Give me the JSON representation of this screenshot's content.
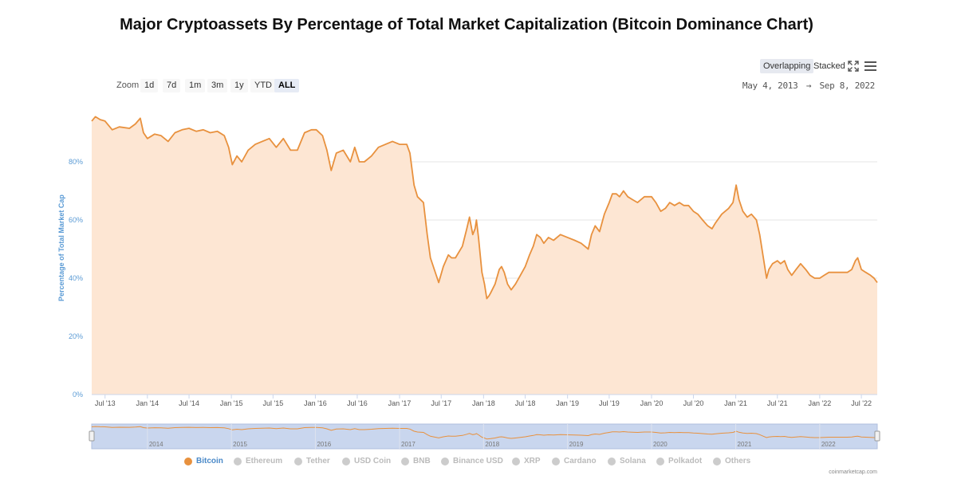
{
  "title": "Major Cryptoassets By Percentage of Total Market Capitalization (Bitcoin Dominance Chart)",
  "view_toggle": {
    "overlapping": "Overlapping",
    "stacked": "Stacked",
    "active": "overlapping"
  },
  "icons": {
    "fullscreen": "fullscreen-icon",
    "menu": "hamburger-menu-icon"
  },
  "zoom": {
    "label": "Zoom",
    "buttons": [
      "1d",
      "7d",
      "1m",
      "3m",
      "1y",
      "YTD",
      "ALL"
    ],
    "active": "ALL"
  },
  "range": {
    "from": "May 4, 2013",
    "arrow": "→",
    "to": "Sep 8, 2022"
  },
  "colors": {
    "bitcoin_line": "#e8913e",
    "bitcoin_fill": "#fde6d3",
    "axis_label": "#5b9bd5",
    "navigator_mask": "#c9d6ee"
  },
  "chart_data": {
    "type": "area",
    "ylabel": "Percentage of Total Market Cap",
    "ylim": [
      0,
      100
    ],
    "y_ticks": [
      0,
      20,
      40,
      60,
      80
    ],
    "y_tick_labels": [
      "0%",
      "20%",
      "40%",
      "60%",
      "80%"
    ],
    "x_range": [
      "2013-05-04",
      "2022-09-08"
    ],
    "x_ticks": [
      {
        "date": "2013-07-01",
        "label": "Jul '13"
      },
      {
        "date": "2014-01-01",
        "label": "Jan '14"
      },
      {
        "date": "2014-07-01",
        "label": "Jul '14"
      },
      {
        "date": "2015-01-01",
        "label": "Jan '15"
      },
      {
        "date": "2015-07-01",
        "label": "Jul '15"
      },
      {
        "date": "2016-01-01",
        "label": "Jan '16"
      },
      {
        "date": "2016-07-01",
        "label": "Jul '16"
      },
      {
        "date": "2017-01-01",
        "label": "Jan '17"
      },
      {
        "date": "2017-07-01",
        "label": "Jul '17"
      },
      {
        "date": "2018-01-01",
        "label": "Jan '18"
      },
      {
        "date": "2018-07-01",
        "label": "Jul '18"
      },
      {
        "date": "2019-01-01",
        "label": "Jan '19"
      },
      {
        "date": "2019-07-01",
        "label": "Jul '19"
      },
      {
        "date": "2020-01-01",
        "label": "Jan '20"
      },
      {
        "date": "2020-07-01",
        "label": "Jul '20"
      },
      {
        "date": "2021-01-01",
        "label": "Jan '21"
      },
      {
        "date": "2021-07-01",
        "label": "Jul '21"
      },
      {
        "date": "2022-01-01",
        "label": "Jan '22"
      },
      {
        "date": "2022-07-01",
        "label": "Jul '22"
      }
    ],
    "navigator_ticks": [
      {
        "date": "2014-01-01",
        "label": "2014"
      },
      {
        "date": "2015-01-01",
        "label": "2015"
      },
      {
        "date": "2016-01-01",
        "label": "2016"
      },
      {
        "date": "2017-01-01",
        "label": "2017"
      },
      {
        "date": "2018-01-01",
        "label": "2018"
      },
      {
        "date": "2019-01-01",
        "label": "2019"
      },
      {
        "date": "2020-01-01",
        "label": "2020"
      },
      {
        "date": "2021-01-01",
        "label": "2021"
      },
      {
        "date": "2022-01-01",
        "label": "2022"
      }
    ],
    "series": [
      {
        "name": "Bitcoin",
        "visible": true,
        "points": [
          [
            "2013-05-04",
            94
          ],
          [
            "2013-05-20",
            95.5
          ],
          [
            "2013-06-10",
            94.5
          ],
          [
            "2013-07-01",
            94
          ],
          [
            "2013-08-01",
            91
          ],
          [
            "2013-09-01",
            92
          ],
          [
            "2013-10-15",
            91.5
          ],
          [
            "2013-11-10",
            93
          ],
          [
            "2013-12-01",
            95
          ],
          [
            "2013-12-15",
            90
          ],
          [
            "2014-01-01",
            88
          ],
          [
            "2014-02-01",
            89.5
          ],
          [
            "2014-03-01",
            89
          ],
          [
            "2014-04-01",
            87
          ],
          [
            "2014-05-01",
            90
          ],
          [
            "2014-06-01",
            91
          ],
          [
            "2014-07-01",
            91.5
          ],
          [
            "2014-08-01",
            90.5
          ],
          [
            "2014-09-01",
            91
          ],
          [
            "2014-10-01",
            90
          ],
          [
            "2014-11-01",
            90.5
          ],
          [
            "2014-12-01",
            89
          ],
          [
            "2014-12-20",
            85
          ],
          [
            "2015-01-05",
            79
          ],
          [
            "2015-01-25",
            82
          ],
          [
            "2015-02-15",
            80
          ],
          [
            "2015-03-15",
            84
          ],
          [
            "2015-04-15",
            86
          ],
          [
            "2015-05-15",
            87
          ],
          [
            "2015-06-15",
            88
          ],
          [
            "2015-07-15",
            85
          ],
          [
            "2015-08-15",
            88
          ],
          [
            "2015-09-15",
            84
          ],
          [
            "2015-10-15",
            84
          ],
          [
            "2015-11-15",
            90
          ],
          [
            "2015-12-15",
            91
          ],
          [
            "2016-01-05",
            91
          ],
          [
            "2016-02-01",
            89
          ],
          [
            "2016-02-20",
            84
          ],
          [
            "2016-03-10",
            77
          ],
          [
            "2016-04-01",
            83
          ],
          [
            "2016-05-01",
            84
          ],
          [
            "2016-06-01",
            80
          ],
          [
            "2016-06-20",
            85
          ],
          [
            "2016-07-10",
            80
          ],
          [
            "2016-08-01",
            80
          ],
          [
            "2016-09-01",
            82
          ],
          [
            "2016-10-01",
            85
          ],
          [
            "2016-11-01",
            86
          ],
          [
            "2016-12-01",
            87
          ],
          [
            "2017-01-01",
            86
          ],
          [
            "2017-01-20",
            86
          ],
          [
            "2017-02-01",
            86
          ],
          [
            "2017-02-15",
            83
          ],
          [
            "2017-03-05",
            72
          ],
          [
            "2017-03-20",
            68
          ],
          [
            "2017-04-15",
            66
          ],
          [
            "2017-05-01",
            55
          ],
          [
            "2017-05-15",
            47
          ],
          [
            "2017-06-01",
            43
          ],
          [
            "2017-06-20",
            38.5
          ],
          [
            "2017-07-10",
            44
          ],
          [
            "2017-08-01",
            48
          ],
          [
            "2017-08-15",
            47
          ],
          [
            "2017-09-01",
            47
          ],
          [
            "2017-10-01",
            51
          ],
          [
            "2017-10-20",
            57
          ],
          [
            "2017-11-01",
            61
          ],
          [
            "2017-11-15",
            55
          ],
          [
            "2017-11-25",
            57
          ],
          [
            "2017-12-01",
            60
          ],
          [
            "2017-12-10",
            54
          ],
          [
            "2017-12-25",
            42
          ],
          [
            "2018-01-05",
            38
          ],
          [
            "2018-01-15",
            33
          ],
          [
            "2018-01-25",
            34
          ],
          [
            "2018-02-01",
            35
          ],
          [
            "2018-02-20",
            38
          ],
          [
            "2018-03-10",
            43
          ],
          [
            "2018-03-20",
            44
          ],
          [
            "2018-04-01",
            42
          ],
          [
            "2018-04-15",
            38
          ],
          [
            "2018-05-01",
            36
          ],
          [
            "2018-05-20",
            38
          ],
          [
            "2018-06-10",
            41
          ],
          [
            "2018-07-01",
            44
          ],
          [
            "2018-07-20",
            48
          ],
          [
            "2018-08-05",
            51
          ],
          [
            "2018-08-20",
            55
          ],
          [
            "2018-09-05",
            54
          ],
          [
            "2018-09-20",
            52
          ],
          [
            "2018-10-10",
            54
          ],
          [
            "2018-11-01",
            53
          ],
          [
            "2018-12-01",
            55
          ],
          [
            "2019-01-01",
            54
          ],
          [
            "2019-02-01",
            53
          ],
          [
            "2019-03-01",
            52
          ],
          [
            "2019-04-01",
            50
          ],
          [
            "2019-04-15",
            55
          ],
          [
            "2019-05-01",
            58
          ],
          [
            "2019-05-20",
            56
          ],
          [
            "2019-06-10",
            62
          ],
          [
            "2019-07-01",
            66
          ],
          [
            "2019-07-15",
            69
          ],
          [
            "2019-08-01",
            69
          ],
          [
            "2019-08-15",
            68
          ],
          [
            "2019-09-01",
            70
          ],
          [
            "2019-09-20",
            68
          ],
          [
            "2019-10-10",
            67
          ],
          [
            "2019-11-01",
            66
          ],
          [
            "2019-12-01",
            68
          ],
          [
            "2020-01-01",
            68
          ],
          [
            "2020-01-20",
            66
          ],
          [
            "2020-02-10",
            63
          ],
          [
            "2020-03-01",
            64
          ],
          [
            "2020-03-20",
            66
          ],
          [
            "2020-04-10",
            65
          ],
          [
            "2020-05-01",
            66
          ],
          [
            "2020-05-20",
            65
          ],
          [
            "2020-06-10",
            65
          ],
          [
            "2020-07-01",
            63
          ],
          [
            "2020-07-20",
            62
          ],
          [
            "2020-08-10",
            60
          ],
          [
            "2020-09-01",
            58
          ],
          [
            "2020-09-20",
            57
          ],
          [
            "2020-10-05",
            59
          ],
          [
            "2020-11-01",
            62
          ],
          [
            "2020-12-01",
            64
          ],
          [
            "2020-12-20",
            66
          ],
          [
            "2021-01-03",
            72
          ],
          [
            "2021-01-15",
            67
          ],
          [
            "2021-02-01",
            63
          ],
          [
            "2021-02-20",
            61
          ],
          [
            "2021-03-10",
            62
          ],
          [
            "2021-04-01",
            60
          ],
          [
            "2021-04-15",
            55
          ],
          [
            "2021-05-01",
            47
          ],
          [
            "2021-05-15",
            40
          ],
          [
            "2021-05-25",
            43
          ],
          [
            "2021-06-10",
            45
          ],
          [
            "2021-07-01",
            46
          ],
          [
            "2021-07-15",
            45
          ],
          [
            "2021-08-01",
            46
          ],
          [
            "2021-08-15",
            43
          ],
          [
            "2021-09-01",
            41
          ],
          [
            "2021-09-20",
            43
          ],
          [
            "2021-10-10",
            45
          ],
          [
            "2021-11-01",
            43
          ],
          [
            "2021-11-20",
            41
          ],
          [
            "2021-12-10",
            40
          ],
          [
            "2022-01-01",
            40
          ],
          [
            "2022-01-20",
            41
          ],
          [
            "2022-02-10",
            42
          ],
          [
            "2022-03-01",
            42
          ],
          [
            "2022-04-01",
            42
          ],
          [
            "2022-05-01",
            42
          ],
          [
            "2022-05-20",
            43
          ],
          [
            "2022-06-05",
            46
          ],
          [
            "2022-06-15",
            47
          ],
          [
            "2022-07-01",
            43
          ],
          [
            "2022-07-20",
            42
          ],
          [
            "2022-08-10",
            41
          ],
          [
            "2022-08-25",
            40
          ],
          [
            "2022-09-08",
            38.5
          ]
        ]
      }
    ],
    "legend": [
      {
        "name": "Bitcoin",
        "active": true,
        "color": "#e8913e"
      },
      {
        "name": "Ethereum",
        "active": false,
        "color": "#cccccc"
      },
      {
        "name": "Tether",
        "active": false,
        "color": "#cccccc"
      },
      {
        "name": "USD Coin",
        "active": false,
        "color": "#cccccc"
      },
      {
        "name": "BNB",
        "active": false,
        "color": "#cccccc"
      },
      {
        "name": "Binance USD",
        "active": false,
        "color": "#cccccc"
      },
      {
        "name": "XRP",
        "active": false,
        "color": "#cccccc"
      },
      {
        "name": "Cardano",
        "active": false,
        "color": "#cccccc"
      },
      {
        "name": "Solana",
        "active": false,
        "color": "#cccccc"
      },
      {
        "name": "Polkadot",
        "active": false,
        "color": "#cccccc"
      },
      {
        "name": "Others",
        "active": false,
        "color": "#cccccc"
      }
    ],
    "legend_position": "bottom"
  },
  "credit": "coinmarketcap.com"
}
